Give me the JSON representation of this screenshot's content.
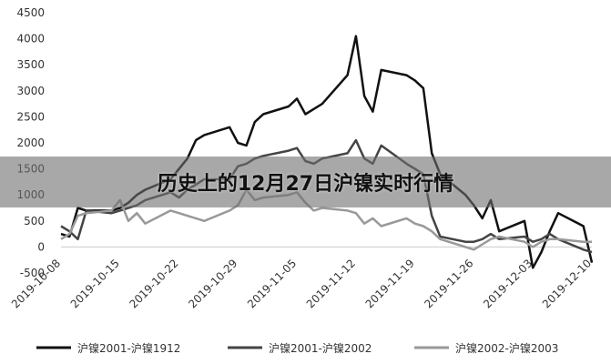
{
  "chart_data": {
    "type": "line",
    "x": [
      "2019-10-08",
      "2019-10-09",
      "2019-10-10",
      "2019-10-11",
      "2019-10-14",
      "2019-10-15",
      "2019-10-16",
      "2019-10-17",
      "2019-10-18",
      "2019-10-21",
      "2019-10-22",
      "2019-10-23",
      "2019-10-24",
      "2019-10-25",
      "2019-10-28",
      "2019-10-29",
      "2019-10-30",
      "2019-10-31",
      "2019-11-01",
      "2019-11-04",
      "2019-11-05",
      "2019-11-06",
      "2019-11-07",
      "2019-11-08",
      "2019-11-11",
      "2019-11-12",
      "2019-11-13",
      "2019-11-14",
      "2019-11-15",
      "2019-11-18",
      "2019-11-19",
      "2019-11-20",
      "2019-11-21",
      "2019-11-22",
      "2019-11-25",
      "2019-11-26",
      "2019-11-27",
      "2019-11-28",
      "2019-11-29",
      "2019-12-02",
      "2019-12-03",
      "2019-12-04",
      "2019-12-05",
      "2019-12-06",
      "2019-12-09",
      "2019-12-10"
    ],
    "xlim": [
      "2019-10-08",
      "2019-12-10"
    ],
    "xticks": [
      "2019-10-08",
      "2019-10-15",
      "2019-10-22",
      "2019-10-29",
      "2019-11-05",
      "2019-11-12",
      "2019-11-19",
      "2019-11-26",
      "2019-12-03",
      "2019-12-10"
    ],
    "ylim": [
      -500,
      4500
    ],
    "yticks": [
      -500,
      0,
      500,
      1000,
      1500,
      2000,
      2500,
      3000,
      3500,
      4000,
      4500
    ],
    "grid": false,
    "legend": "bottom",
    "series": [
      {
        "name": "沪镍2001-沪镍1912",
        "color": "#111111",
        "values": [
          250,
          200,
          750,
          700,
          700,
          750,
          850,
          1000,
          1100,
          1300,
          1500,
          1700,
          2050,
          2150,
          2300,
          2000,
          1950,
          2400,
          2550,
          2700,
          2850,
          2550,
          2650,
          2750,
          3300,
          4050,
          2900,
          2600,
          3400,
          3300,
          3200,
          3050,
          1800,
          1400,
          1000,
          800,
          550,
          900,
          300,
          500,
          -400,
          -100,
          300,
          650,
          400,
          -300
        ]
      },
      {
        "name": "沪镍2001-沪镍2002",
        "color": "#444444",
        "values": [
          400,
          300,
          150,
          700,
          650,
          700,
          750,
          800,
          900,
          1050,
          950,
          1100,
          1200,
          1300,
          1300,
          1550,
          1600,
          1700,
          1750,
          1850,
          1900,
          1650,
          1600,
          1700,
          1800,
          2050,
          1700,
          1600,
          1950,
          1600,
          1500,
          1400,
          600,
          200,
          100,
          100,
          150,
          250,
          150,
          200,
          100,
          150,
          250,
          150,
          -50,
          -100
        ]
      },
      {
        "name": "沪镍2002-沪镍2003",
        "color": "#999999",
        "values": [
          150,
          250,
          600,
          650,
          700,
          900,
          500,
          650,
          450,
          700,
          650,
          600,
          550,
          500,
          700,
          800,
          1100,
          900,
          950,
          1000,
          1050,
          850,
          700,
          750,
          700,
          650,
          450,
          550,
          400,
          550,
          450,
          400,
          300,
          150,
          0,
          -50,
          50,
          150,
          200,
          100,
          0,
          100,
          150,
          150,
          100,
          100
        ]
      }
    ]
  },
  "banner": {
    "text": "历史上的12月27日沪镍实时行情"
  }
}
